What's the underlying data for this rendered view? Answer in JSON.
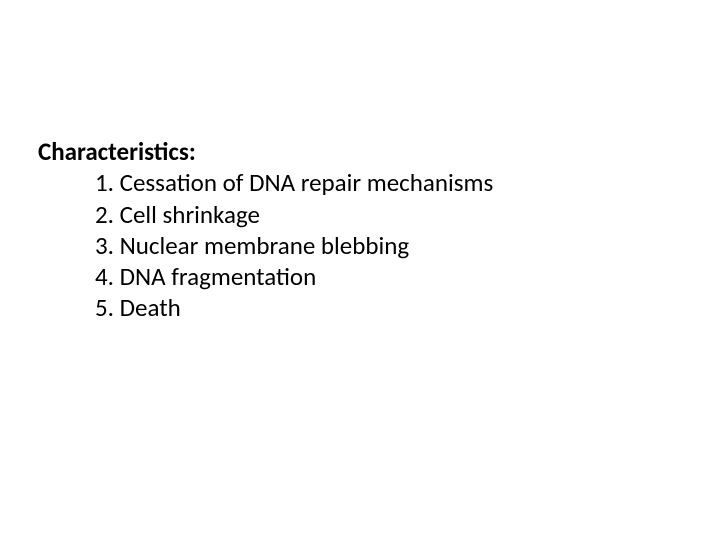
{
  "heading": "Characteristics:",
  "items": [
    "1. Cessation of DNA repair mechanisms",
    "2. Cell shrinkage",
    "3. Nuclear membrane blebbing",
    "4. DNA fragmentation",
    "5. Death"
  ],
  "styles": {
    "background_color": "#ffffff",
    "text_color": "#000000",
    "heading_fontsize": 25,
    "heading_fontweight": "bold",
    "item_fontsize": 25,
    "item_fontweight": "normal",
    "font_family": "Calibri",
    "content_top_padding": 136,
    "content_left_padding": 38,
    "item_indent": 57,
    "line_height": 1.25
  }
}
